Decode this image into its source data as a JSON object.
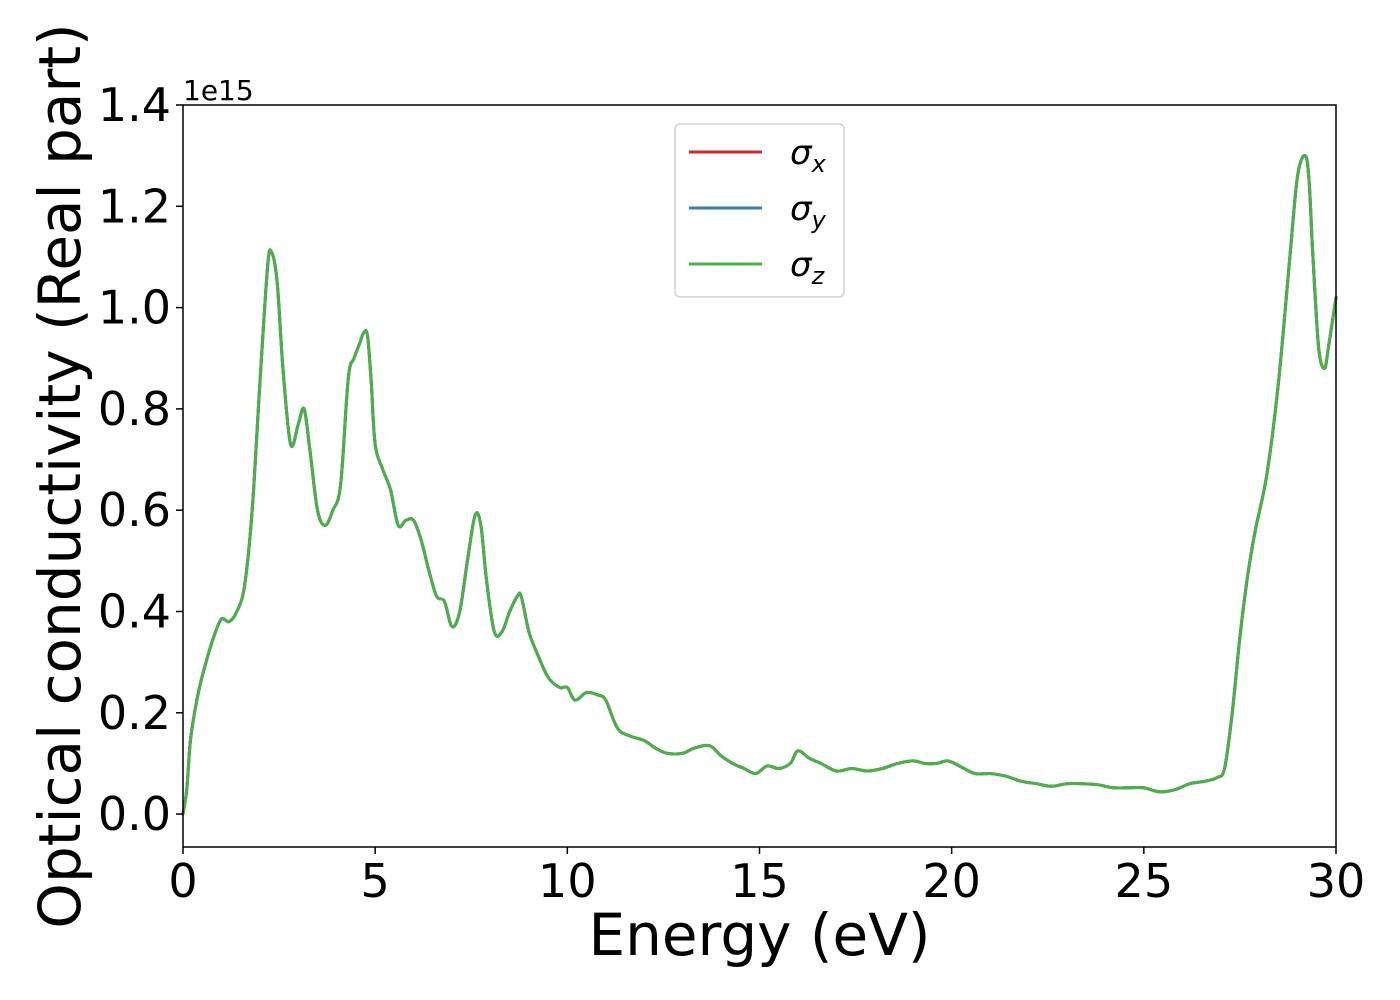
{
  "chart_data": {
    "type": "line",
    "title": "",
    "xlabel": "Energy (eV)",
    "ylabel": "Optical conductivity (Real part)",
    "y_offset_label": "1e15",
    "y_scale_factor": 1000000000000000.0,
    "xlim": [
      0,
      30
    ],
    "ylim": [
      -0.065,
      1.4
    ],
    "xticks": [
      0,
      5,
      10,
      15,
      20,
      25,
      30
    ],
    "xtick_labels": [
      "0",
      "5",
      "10",
      "15",
      "20",
      "25",
      "30"
    ],
    "yticks": [
      0.0,
      0.2,
      0.4,
      0.6,
      0.8,
      1.0,
      1.2,
      1.4
    ],
    "ytick_labels": [
      "0.0",
      "0.2",
      "0.4",
      "0.6",
      "0.8",
      "1.0",
      "1.2",
      "1.4"
    ],
    "grid": false,
    "legend_placement": "upper-center",
    "x": [
      0,
      0.1,
      0.2,
      0.4,
      0.6,
      0.8,
      1.0,
      1.2,
      1.4,
      1.6,
      1.8,
      2.0,
      2.2,
      2.3,
      2.45,
      2.6,
      2.8,
      3.0,
      3.15,
      3.3,
      3.5,
      3.7,
      3.9,
      4.1,
      4.3,
      4.45,
      4.6,
      4.7,
      4.8,
      4.9,
      5.0,
      5.2,
      5.4,
      5.6,
      5.8,
      6.0,
      6.2,
      6.4,
      6.6,
      6.8,
      7.0,
      7.2,
      7.4,
      7.6,
      7.75,
      7.9,
      8.1,
      8.3,
      8.5,
      8.7,
      8.8,
      9.0,
      9.2,
      9.5,
      9.8,
      10.0,
      10.2,
      10.5,
      10.8,
      11.0,
      11.3,
      11.6,
      12.0,
      12.3,
      12.6,
      13.0,
      13.3,
      13.7,
      14.0,
      14.3,
      14.6,
      14.9,
      15.2,
      15.5,
      15.8,
      16.0,
      16.3,
      16.6,
      17.0,
      17.4,
      17.8,
      18.2,
      18.6,
      19.0,
      19.3,
      19.6,
      19.9,
      20.2,
      20.6,
      21.0,
      21.4,
      21.8,
      22.2,
      22.6,
      23.0,
      23.4,
      23.8,
      24.2,
      24.6,
      25.0,
      25.4,
      25.8,
      26.2,
      26.6,
      26.9,
      27.1,
      27.3,
      27.5,
      27.7,
      27.9,
      28.2,
      28.5,
      28.8,
      29.0,
      29.2,
      29.3,
      29.4,
      29.55,
      29.7,
      29.8,
      30.0
    ],
    "series": [
      {
        "name": "σx",
        "color": "#d62728",
        "values": [
          0.0,
          0.05,
          0.15,
          0.24,
          0.3,
          0.35,
          0.385,
          0.38,
          0.4,
          0.45,
          0.6,
          0.85,
          1.08,
          1.11,
          1.05,
          0.88,
          0.73,
          0.77,
          0.8,
          0.72,
          0.6,
          0.57,
          0.6,
          0.65,
          0.86,
          0.9,
          0.93,
          0.95,
          0.945,
          0.85,
          0.73,
          0.68,
          0.64,
          0.57,
          0.58,
          0.58,
          0.54,
          0.48,
          0.43,
          0.42,
          0.37,
          0.4,
          0.5,
          0.59,
          0.57,
          0.46,
          0.36,
          0.36,
          0.4,
          0.43,
          0.43,
          0.36,
          0.32,
          0.27,
          0.25,
          0.25,
          0.225,
          0.24,
          0.235,
          0.225,
          0.17,
          0.155,
          0.145,
          0.13,
          0.12,
          0.12,
          0.13,
          0.135,
          0.115,
          0.1,
          0.09,
          0.08,
          0.095,
          0.09,
          0.1,
          0.125,
          0.11,
          0.1,
          0.085,
          0.09,
          0.085,
          0.09,
          0.1,
          0.105,
          0.1,
          0.1,
          0.105,
          0.095,
          0.08,
          0.08,
          0.075,
          0.065,
          0.06,
          0.055,
          0.06,
          0.06,
          0.058,
          0.052,
          0.052,
          0.052,
          0.044,
          0.048,
          0.06,
          0.065,
          0.072,
          0.09,
          0.2,
          0.35,
          0.47,
          0.56,
          0.67,
          0.85,
          1.1,
          1.26,
          1.3,
          1.25,
          1.1,
          0.92,
          0.88,
          0.92,
          1.02
        ]
      },
      {
        "name": "σy",
        "color": "#377eb8",
        "values": [
          0.0,
          0.05,
          0.15,
          0.24,
          0.3,
          0.35,
          0.385,
          0.38,
          0.4,
          0.45,
          0.6,
          0.85,
          1.08,
          1.11,
          1.05,
          0.88,
          0.73,
          0.77,
          0.8,
          0.72,
          0.6,
          0.57,
          0.6,
          0.65,
          0.86,
          0.9,
          0.93,
          0.95,
          0.945,
          0.85,
          0.73,
          0.68,
          0.64,
          0.57,
          0.58,
          0.58,
          0.54,
          0.48,
          0.43,
          0.42,
          0.37,
          0.4,
          0.5,
          0.59,
          0.57,
          0.46,
          0.36,
          0.36,
          0.4,
          0.43,
          0.43,
          0.36,
          0.32,
          0.27,
          0.25,
          0.25,
          0.225,
          0.24,
          0.235,
          0.225,
          0.17,
          0.155,
          0.145,
          0.13,
          0.12,
          0.12,
          0.13,
          0.135,
          0.115,
          0.1,
          0.09,
          0.08,
          0.095,
          0.09,
          0.1,
          0.125,
          0.11,
          0.1,
          0.085,
          0.09,
          0.085,
          0.09,
          0.1,
          0.105,
          0.1,
          0.1,
          0.105,
          0.095,
          0.08,
          0.08,
          0.075,
          0.065,
          0.06,
          0.055,
          0.06,
          0.06,
          0.058,
          0.052,
          0.052,
          0.052,
          0.044,
          0.048,
          0.06,
          0.065,
          0.072,
          0.09,
          0.2,
          0.35,
          0.47,
          0.56,
          0.67,
          0.85,
          1.1,
          1.26,
          1.3,
          1.25,
          1.1,
          0.92,
          0.88,
          0.92,
          1.02
        ]
      },
      {
        "name": "σz",
        "color": "#4daf4a",
        "values": [
          0.0,
          0.05,
          0.15,
          0.24,
          0.3,
          0.35,
          0.385,
          0.38,
          0.4,
          0.45,
          0.6,
          0.85,
          1.08,
          1.11,
          1.05,
          0.88,
          0.73,
          0.77,
          0.8,
          0.72,
          0.6,
          0.57,
          0.6,
          0.65,
          0.86,
          0.9,
          0.93,
          0.95,
          0.945,
          0.85,
          0.73,
          0.68,
          0.64,
          0.57,
          0.58,
          0.58,
          0.54,
          0.48,
          0.43,
          0.42,
          0.37,
          0.4,
          0.5,
          0.59,
          0.57,
          0.46,
          0.36,
          0.36,
          0.4,
          0.43,
          0.43,
          0.36,
          0.32,
          0.27,
          0.25,
          0.25,
          0.225,
          0.24,
          0.235,
          0.225,
          0.17,
          0.155,
          0.145,
          0.13,
          0.12,
          0.12,
          0.13,
          0.135,
          0.115,
          0.1,
          0.09,
          0.08,
          0.095,
          0.09,
          0.1,
          0.125,
          0.11,
          0.1,
          0.085,
          0.09,
          0.085,
          0.09,
          0.1,
          0.105,
          0.1,
          0.1,
          0.105,
          0.095,
          0.08,
          0.08,
          0.075,
          0.065,
          0.06,
          0.055,
          0.06,
          0.06,
          0.058,
          0.052,
          0.052,
          0.052,
          0.044,
          0.048,
          0.06,
          0.065,
          0.072,
          0.09,
          0.2,
          0.35,
          0.47,
          0.56,
          0.67,
          0.85,
          1.1,
          1.26,
          1.3,
          1.25,
          1.1,
          0.92,
          0.88,
          0.92,
          1.02
        ]
      }
    ],
    "legend": [
      {
        "symbol": "σ",
        "sub": "x",
        "color": "#d62728"
      },
      {
        "symbol": "σ",
        "sub": "y",
        "color": "#377eb8"
      },
      {
        "symbol": "σ",
        "sub": "z",
        "color": "#4daf4a"
      }
    ]
  }
}
